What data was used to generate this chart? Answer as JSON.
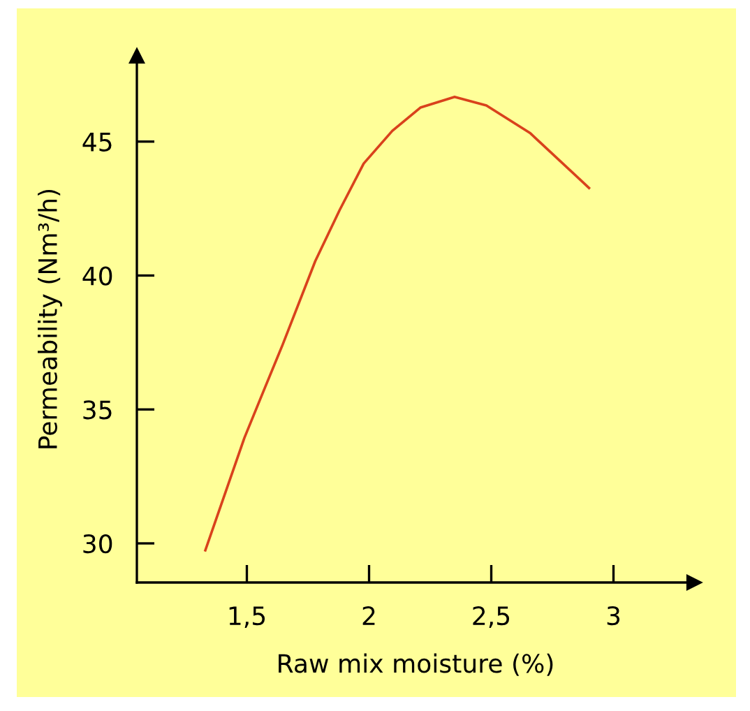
{
  "chart_data": {
    "type": "line",
    "xlabel": "Raw mix moisture (%)",
    "ylabel": "Permeability (Nm³/h)",
    "xlim": [
      1.05,
      3.33
    ],
    "ylim": [
      28.54,
      48.2
    ],
    "xticks": [
      {
        "value": 1.5,
        "label": "1,5"
      },
      2,
      {
        "value": 2.5,
        "label": "2,5"
      },
      3
    ],
    "yticks": [
      30,
      35,
      40,
      45
    ],
    "grid": false,
    "legend": false,
    "x": [
      1.33,
      1.49,
      1.568,
      1.646,
      1.78,
      1.88,
      1.978,
      2.095,
      2.21,
      2.35,
      2.48,
      2.66,
      2.9
    ],
    "series": [
      {
        "color": "#d9421c",
        "values": [
          29.74,
          33.94,
          35.68,
          37.41,
          40.54,
          42.45,
          44.18,
          45.4,
          46.27,
          46.67,
          46.35,
          45.31,
          43.27
        ]
      }
    ]
  }
}
